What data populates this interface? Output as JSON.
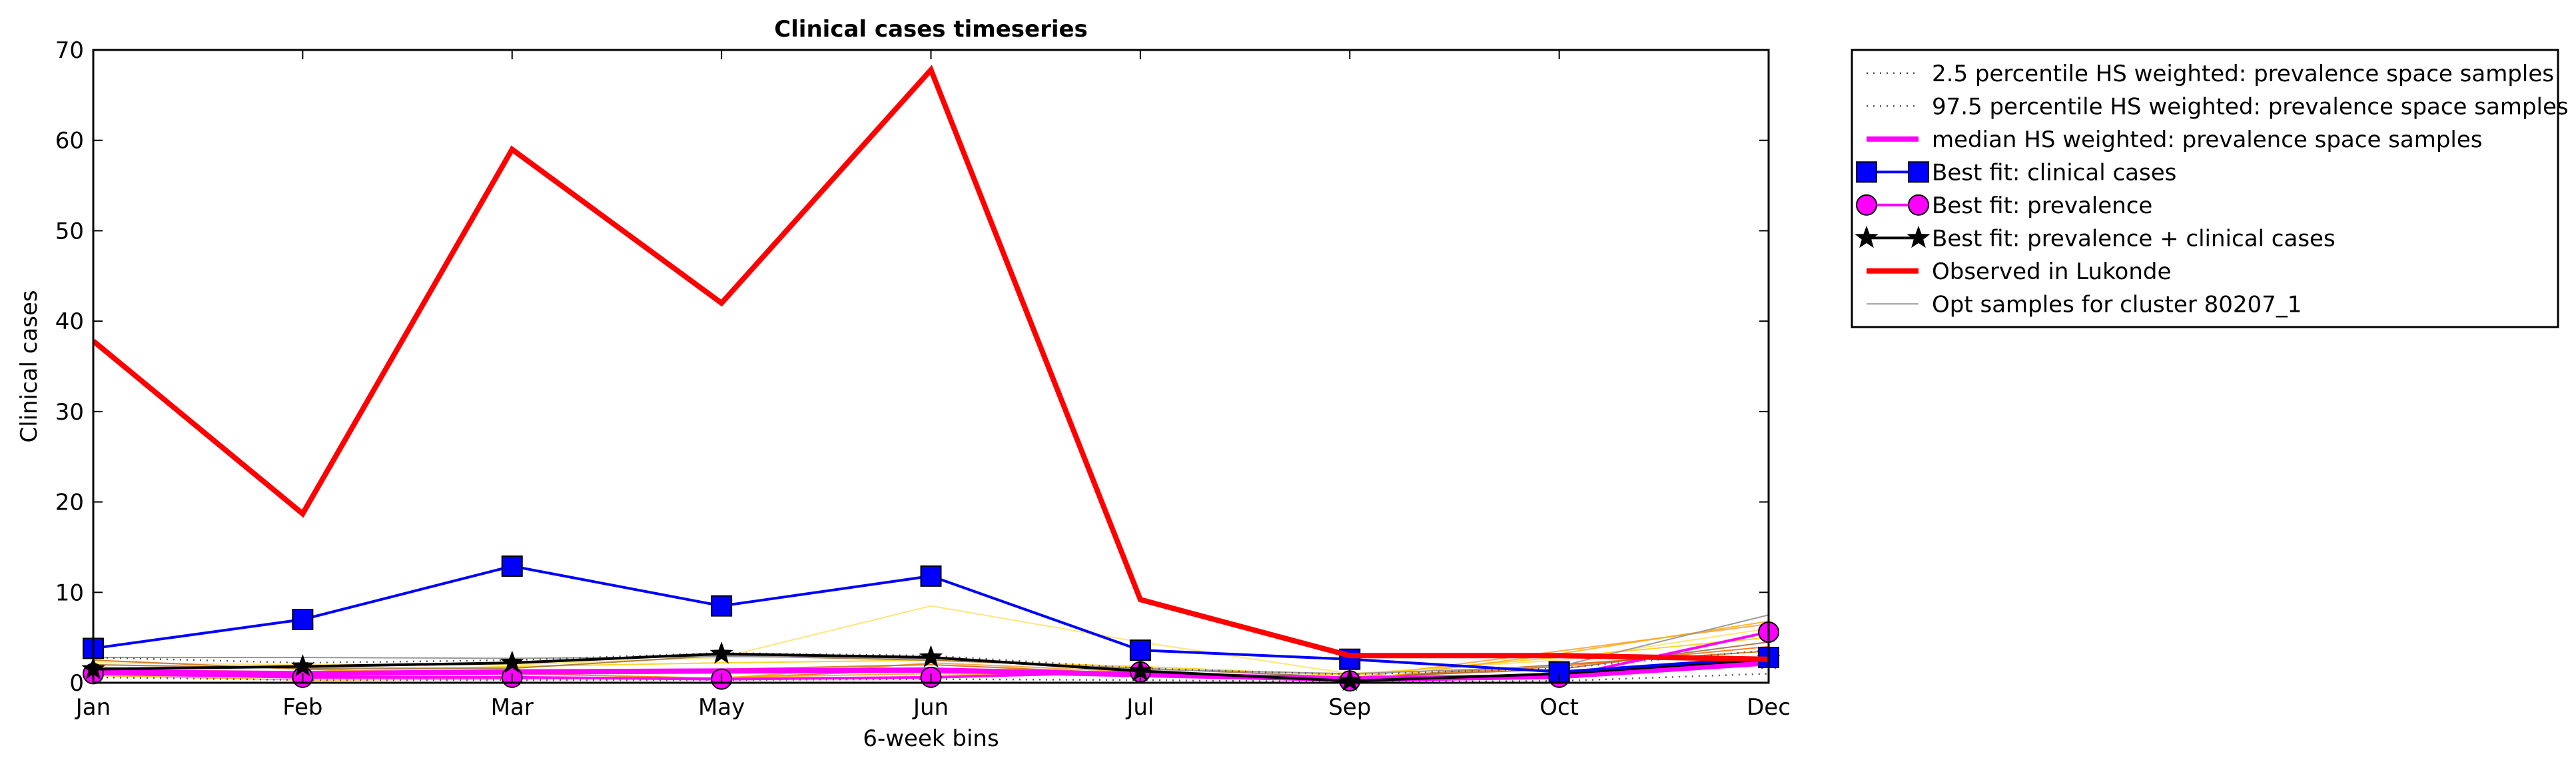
{
  "chart_data": {
    "type": "line",
    "title": "Clinical cases timeseries",
    "xlabel": "6-week bins",
    "ylabel": "Clinical cases",
    "categories": [
      "Jan",
      "Feb",
      "Mar",
      "May",
      "Jun",
      "Jul",
      "Sep",
      "Oct",
      "Dec"
    ],
    "ylim": [
      0,
      70
    ],
    "yticks": [
      0,
      10,
      20,
      30,
      40,
      50,
      60,
      70
    ],
    "grid": false,
    "legend_position": "outside-top-right",
    "series": [
      {
        "name": "2.5 percentile HS weighted: prevalence space samples",
        "color": "#555555",
        "style": "dotted",
        "values": [
          0.6,
          0.3,
          0.3,
          0.3,
          0.4,
          0.3,
          0.1,
          0.2,
          1.0
        ]
      },
      {
        "name": "97.5 percentile HS weighted: prevalence space samples",
        "color": "#555555",
        "style": "dotted",
        "values": [
          2.8,
          2.2,
          2.5,
          3.3,
          3.0,
          1.6,
          0.9,
          1.6,
          3.6
        ]
      },
      {
        "name": "median HS weighted: prevalence space samples",
        "color": "#ff00ff",
        "style": "solid-thick",
        "values": [
          1.2,
          1.0,
          1.2,
          1.3,
          1.4,
          0.9,
          0.4,
          0.7,
          2.2
        ]
      },
      {
        "name": "Best fit: clinical cases",
        "color": "#0000ff",
        "style": "solid",
        "marker": "square",
        "values": [
          3.8,
          7.0,
          12.9,
          8.5,
          11.8,
          3.6,
          2.6,
          1.2,
          2.8
        ]
      },
      {
        "name": "Best fit: prevalence",
        "color": "#ff00ff",
        "style": "solid",
        "marker": "circle",
        "values": [
          1.0,
          0.6,
          0.6,
          0.4,
          0.6,
          1.2,
          0.2,
          0.6,
          5.6
        ]
      },
      {
        "name": "Best fit: prevalence + clinical cases",
        "color": "#000000",
        "style": "solid",
        "marker": "star",
        "values": [
          1.5,
          1.8,
          2.2,
          3.2,
          2.8,
          1.3,
          0.2,
          1.0,
          2.6
        ]
      },
      {
        "name": "Observed in Lukonde",
        "color": "#ff0000",
        "style": "solid-thick",
        "values": [
          37.8,
          18.7,
          59.0,
          42.0,
          67.8,
          9.2,
          3.0,
          3.0,
          2.6
        ]
      },
      {
        "name": "Opt samples for cluster 80207_1",
        "color": "#999999",
        "style": "thin",
        "values": [
          2.8,
          2.8,
          2.7,
          2.9,
          2.7,
          1.5,
          1.0,
          1.8,
          7.5
        ]
      }
    ],
    "background_samples": [
      {
        "color": "#ffe066",
        "values": [
          2.2,
          2.0,
          2.0,
          2.8,
          8.5,
          4.5,
          1.0,
          2.5,
          6.0
        ]
      },
      {
        "color": "#ff9933",
        "values": [
          1.8,
          0.5,
          0.5,
          0.5,
          2.2,
          1.2,
          0.5,
          3.5,
          6.5
        ]
      },
      {
        "color": "#cc6600",
        "values": [
          2.5,
          1.5,
          1.0,
          1.5,
          2.0,
          1.0,
          0.5,
          2.0,
          3.5
        ]
      },
      {
        "color": "#ff6600",
        "values": [
          1.0,
          0.8,
          1.0,
          0.5,
          1.5,
          1.0,
          0.4,
          1.8,
          4.0
        ]
      },
      {
        "color": "#ffcc00",
        "values": [
          1.5,
          1.2,
          1.8,
          2.2,
          2.5,
          1.8,
          0.8,
          2.8,
          5.0
        ]
      },
      {
        "color": "#996633",
        "values": [
          2.0,
          1.6,
          1.6,
          3.0,
          2.5,
          1.6,
          0.6,
          1.5,
          4.5
        ]
      },
      {
        "color": "#ffaa00",
        "values": [
          0.8,
          0.3,
          0.4,
          0.6,
          1.0,
          0.8,
          0.2,
          3.2,
          6.8
        ]
      }
    ]
  }
}
